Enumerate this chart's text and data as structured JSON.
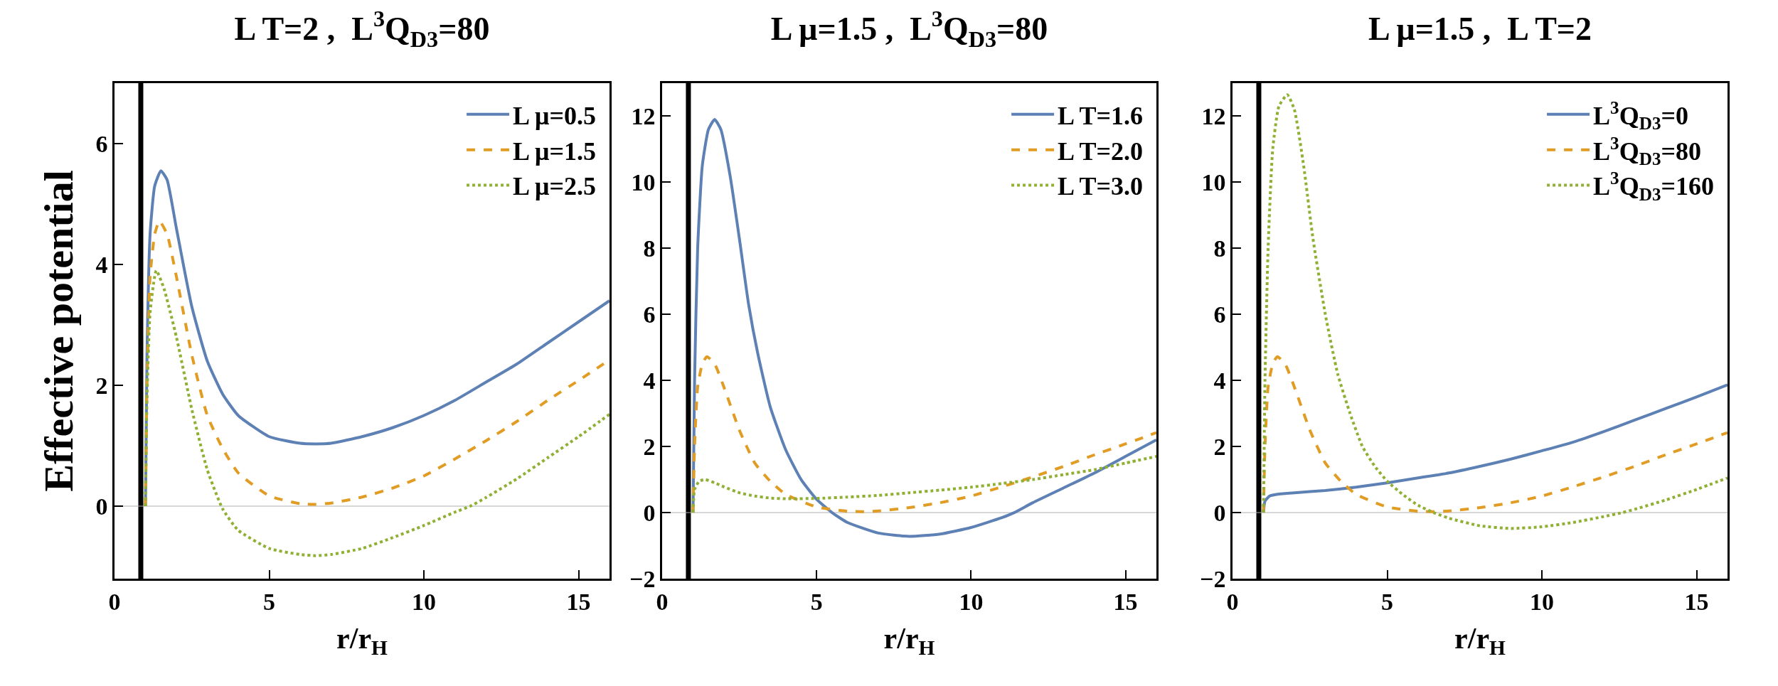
{
  "chart_data": [
    {
      "type": "line",
      "title": "L T=2 ,  L$^{3}$Q$_{D3}$=80",
      "xlabel": "r/r$_{H}$",
      "ylabel": "Effective potential",
      "xlim": [
        0,
        16
      ],
      "xticks": [
        0,
        5,
        10,
        15
      ],
      "ylim": [
        -1.2,
        7
      ],
      "yticks": [
        0,
        2,
        4,
        6
      ],
      "grid": false,
      "legend": "top right",
      "marker": "none",
      "ref_lines": [
        {
          "axis": "x",
          "value": 0.85,
          "color": "#000000"
        },
        {
          "axis": "y",
          "value": 0,
          "color": "#b0b0b0"
        }
      ],
      "series": [
        {
          "name": "L μ=0.5",
          "color": "#5e81b5",
          "line_style": "solid",
          "x": [
            1,
            1.05,
            1.15,
            1.3,
            1.5,
            1.7,
            2,
            2.5,
            3,
            3.5,
            4,
            5,
            6,
            6.5,
            7,
            8,
            9,
            10,
            11,
            12,
            13,
            14,
            15,
            16
          ],
          "values": [
            0,
            2.5,
            4.5,
            5.3,
            5.55,
            5.4,
            4.6,
            3.3,
            2.4,
            1.85,
            1.5,
            1.15,
            1.04,
            1.03,
            1.04,
            1.15,
            1.3,
            1.5,
            1.75,
            2.05,
            2.35,
            2.7,
            3.05,
            3.4
          ]
        },
        {
          "name": "L μ=1.5",
          "color": "#e19c24",
          "line_style": "dashed",
          "x": [
            1,
            1.05,
            1.15,
            1.3,
            1.45,
            1.7,
            2,
            2.5,
            3,
            3.5,
            4,
            5,
            6,
            6.5,
            7,
            8,
            9,
            10,
            11,
            12,
            13,
            14,
            15,
            16
          ],
          "values": [
            0,
            2,
            3.8,
            4.5,
            4.72,
            4.5,
            3.8,
            2.5,
            1.5,
            0.95,
            0.55,
            0.17,
            0.04,
            0.03,
            0.05,
            0.15,
            0.3,
            0.5,
            0.78,
            1.08,
            1.4,
            1.75,
            2.08,
            2.42
          ]
        },
        {
          "name": "L μ=2.5",
          "color": "#8fb032",
          "line_style": "dotted",
          "x": [
            1,
            1.05,
            1.15,
            1.35,
            1.6,
            2,
            2.5,
            3,
            3.5,
            4,
            5,
            6,
            6.5,
            7,
            8,
            9,
            10,
            11,
            11.5,
            12,
            13,
            14,
            15,
            16
          ],
          "values": [
            0,
            1.8,
            3.2,
            3.9,
            3.6,
            2.8,
            1.6,
            0.6,
            -0.05,
            -0.4,
            -0.7,
            -0.8,
            -0.82,
            -0.8,
            -0.7,
            -0.52,
            -0.32,
            -0.1,
            0,
            0.14,
            0.45,
            0.8,
            1.15,
            1.52
          ]
        }
      ]
    },
    {
      "type": "line",
      "title": "L μ=1.5 ,  L$^{3}$Q$_{D3}$=80",
      "xlabel": "r/r$_{H}$",
      "xlim": [
        0,
        16
      ],
      "xticks": [
        0,
        5,
        10,
        15
      ],
      "ylim": [
        -2,
        13
      ],
      "yticks": [
        {
          "value": -2,
          "label": "−2"
        },
        0,
        2,
        4,
        6,
        8,
        10,
        12
      ],
      "grid": false,
      "legend": "top right",
      "marker": "none",
      "ref_lines": [
        {
          "axis": "x",
          "value": 0.85,
          "color": "#000000"
        },
        {
          "axis": "y",
          "value": 0,
          "color": "#b0b0b0"
        }
      ],
      "series": [
        {
          "name": "L T=1.6",
          "color": "#5e81b5",
          "line_style": "solid",
          "x": [
            1,
            1.05,
            1.15,
            1.3,
            1.5,
            1.7,
            1.9,
            2.2,
            2.5,
            2.8,
            3.1,
            3.5,
            4,
            4.5,
            5,
            5.5,
            6,
            7,
            8,
            9,
            10,
            11,
            11.4,
            12,
            13,
            14,
            15,
            16
          ],
          "values": [
            0,
            4,
            8,
            10.5,
            11.6,
            11.9,
            11.6,
            10.2,
            8.3,
            6.3,
            4.8,
            3.2,
            1.9,
            1,
            0.4,
            0,
            -0.3,
            -0.62,
            -0.72,
            -0.65,
            -0.45,
            -0.15,
            0,
            0.3,
            0.75,
            1.2,
            1.7,
            2.2
          ]
        },
        {
          "name": "L T=2.0",
          "color": "#e19c24",
          "line_style": "dashed",
          "x": [
            1,
            1.05,
            1.15,
            1.3,
            1.45,
            1.7,
            2,
            2.5,
            3,
            3.5,
            4,
            5,
            6,
            6.5,
            7,
            8,
            9,
            10,
            11,
            12,
            13,
            14,
            15,
            16
          ],
          "values": [
            0,
            2,
            3.8,
            4.5,
            4.72,
            4.5,
            3.8,
            2.5,
            1.5,
            0.95,
            0.55,
            0.17,
            0.04,
            0.03,
            0.05,
            0.15,
            0.3,
            0.5,
            0.78,
            1.08,
            1.4,
            1.75,
            2.08,
            2.42
          ]
        },
        {
          "name": "L T=3.0",
          "color": "#8fb032",
          "line_style": "dotted",
          "x": [
            1,
            1.05,
            1.2,
            1.4,
            1.7,
            2,
            2.5,
            3,
            3.5,
            4,
            5,
            6,
            7,
            8,
            9,
            10,
            11,
            12,
            13,
            14,
            15,
            16
          ],
          "values": [
            0,
            0.7,
            0.95,
            1,
            0.9,
            0.78,
            0.6,
            0.5,
            0.44,
            0.42,
            0.43,
            0.47,
            0.52,
            0.6,
            0.68,
            0.77,
            0.88,
            1,
            1.15,
            1.3,
            1.5,
            1.7
          ]
        }
      ]
    },
    {
      "type": "line",
      "title": "L μ=1.5 ,  L T=2",
      "xlabel": "r/r$_{H}$",
      "xlim": [
        0,
        16
      ],
      "xticks": [
        0,
        5,
        10,
        15
      ],
      "ylim": [
        -2,
        13
      ],
      "yticks": [
        {
          "value": -2,
          "label": "−2"
        },
        0,
        2,
        4,
        6,
        8,
        10,
        12
      ],
      "grid": false,
      "legend": "top right",
      "marker": "none",
      "ref_lines": [
        {
          "axis": "x",
          "value": 0.85,
          "color": "#000000"
        },
        {
          "axis": "y",
          "value": 0,
          "color": "#b0b0b0"
        }
      ],
      "series": [
        {
          "name": "L$^{3}$Q$_{D3}$=0",
          "color": "#5e81b5",
          "line_style": "solid",
          "x": [
            1,
            1.05,
            1.2,
            1.5,
            2,
            3,
            4,
            5,
            6,
            7,
            8,
            9,
            10,
            11,
            12,
            13,
            14,
            15,
            16
          ],
          "values": [
            0,
            0.35,
            0.5,
            0.56,
            0.6,
            0.67,
            0.77,
            0.9,
            1.05,
            1.2,
            1.4,
            1.62,
            1.87,
            2.13,
            2.45,
            2.8,
            3.15,
            3.5,
            3.87
          ]
        },
        {
          "name": "L$^{3}$Q$_{D3}$=80",
          "color": "#e19c24",
          "line_style": "dashed",
          "x": [
            1,
            1.05,
            1.15,
            1.3,
            1.45,
            1.7,
            2,
            2.5,
            3,
            3.5,
            4,
            5,
            6,
            6.5,
            7,
            8,
            9,
            10,
            11,
            12,
            13,
            14,
            15,
            16
          ],
          "values": [
            0,
            2,
            3.8,
            4.5,
            4.72,
            4.5,
            3.8,
            2.5,
            1.5,
            0.95,
            0.55,
            0.17,
            0.04,
            0.03,
            0.05,
            0.15,
            0.3,
            0.5,
            0.78,
            1.08,
            1.4,
            1.75,
            2.08,
            2.42
          ]
        },
        {
          "name": "L$^{3}$Q$_{D3}$=160",
          "color": "#8fb032",
          "line_style": "dotted",
          "x": [
            1,
            1.05,
            1.15,
            1.3,
            1.5,
            1.77,
            2,
            2.3,
            2.6,
            3,
            3.4,
            3.8,
            4.2,
            4.6,
            5,
            5.5,
            6,
            6.5,
            7,
            8,
            9,
            10,
            11,
            12,
            12.6,
            13,
            14,
            15,
            16
          ],
          "values": [
            0,
            4,
            8,
            11,
            12.3,
            12.65,
            12.2,
            10.5,
            8.3,
            6,
            4.2,
            3,
            2,
            1.4,
            0.95,
            0.55,
            0.22,
            0,
            -0.17,
            -0.4,
            -0.48,
            -0.43,
            -0.3,
            -0.12,
            0,
            0.1,
            0.38,
            0.7,
            1.05
          ]
        }
      ]
    }
  ]
}
